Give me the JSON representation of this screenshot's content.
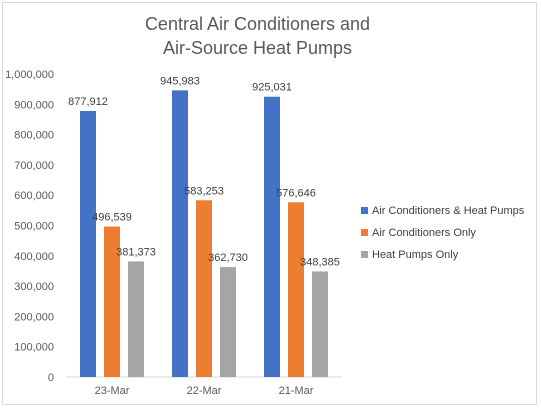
{
  "chart_data": {
    "type": "bar",
    "title_lines": [
      "Central Air Conditioners and",
      "Air-Source Heat Pumps"
    ],
    "categories": [
      "23-Mar",
      "22-Mar",
      "21-Mar"
    ],
    "series": [
      {
        "name": "Air Conditioners & Heat Pumps",
        "color": "#4472c4",
        "values": [
          877912,
          945983,
          925031
        ]
      },
      {
        "name": "Air Conditioners Only",
        "color": "#ed7d31",
        "values": [
          496539,
          583253,
          576646
        ]
      },
      {
        "name": "Heat Pumps Only",
        "color": "#a5a5a5",
        "values": [
          381373,
          362730,
          348385
        ]
      }
    ],
    "ylim": [
      0,
      1000000
    ],
    "y_ticks": [
      0,
      100000,
      200000,
      300000,
      400000,
      500000,
      600000,
      700000,
      800000,
      900000,
      1000000
    ],
    "y_tick_labels": [
      "0",
      "100,000",
      "200,000",
      "300,000",
      "400,000",
      "500,000",
      "600,000",
      "700,000",
      "800,000",
      "900,000",
      "1,000,000"
    ],
    "data_labels": [
      [
        "877,912",
        "945,983",
        "925,031"
      ],
      [
        "496,539",
        "583,253",
        "576,646"
      ],
      [
        "381,373",
        "362,730",
        "348,385"
      ]
    ],
    "grid": false,
    "legend_position": "right"
  }
}
